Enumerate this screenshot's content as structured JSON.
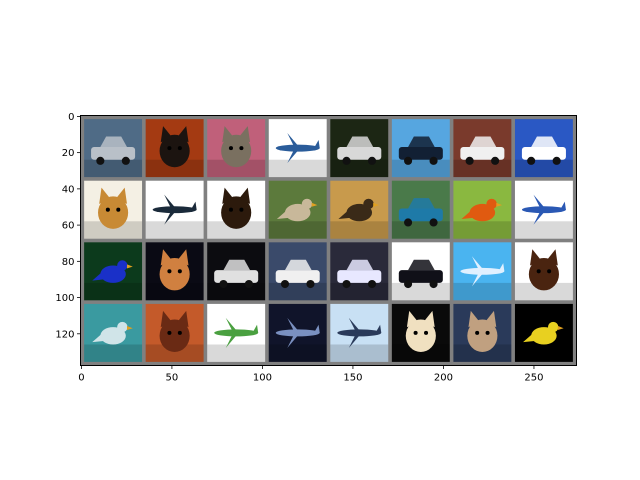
{
  "figure": {
    "type": "image-grid",
    "x_ticks": [
      "0",
      "50",
      "100",
      "150",
      "200",
      "250"
    ],
    "y_ticks": [
      "0",
      "20",
      "40",
      "60",
      "80",
      "100",
      "120"
    ],
    "grid_border_color": "#808080",
    "rows": [
      [
        {
          "subject": "car",
          "bg": "#4f6b86",
          "fg": "#b9c0c8"
        },
        {
          "subject": "cat",
          "bg": "#a43a12",
          "fg": "#1c1410"
        },
        {
          "subject": "cat",
          "bg": "#c0607a",
          "fg": "#7a7060"
        },
        {
          "subject": "airplane",
          "bg": "#ffffff",
          "fg": "#2a5c9a"
        },
        {
          "subject": "car",
          "bg": "#1c2614",
          "fg": "#d8d8d8"
        },
        {
          "subject": "car",
          "bg": "#56a6e0",
          "fg": "#122034"
        },
        {
          "subject": "car",
          "bg": "#7a3a2c",
          "fg": "#f0f0f0"
        },
        {
          "subject": "car",
          "bg": "#2a58c4",
          "fg": "#ffffff"
        }
      ],
      [
        {
          "subject": "cat",
          "bg": "#f4f0e4",
          "fg": "#c88a34"
        },
        {
          "subject": "airplane",
          "bg": "#ffffff",
          "fg": "#1a2a3a"
        },
        {
          "subject": "dog",
          "bg": "#ffffff",
          "fg": "#2c1a0c"
        },
        {
          "subject": "bird",
          "bg": "#5c7a3c",
          "fg": "#c8b89a"
        },
        {
          "subject": "bird",
          "bg": "#c89a4c",
          "fg": "#3a2a18"
        },
        {
          "subject": "car",
          "bg": "#4a7a4a",
          "fg": "#1e7aa8"
        },
        {
          "subject": "bird",
          "bg": "#8ab840",
          "fg": "#e05a10"
        },
        {
          "subject": "airplane",
          "bg": "#ffffff",
          "fg": "#2a58b4"
        }
      ],
      [
        {
          "subject": "bird",
          "bg": "#0c3a1c",
          "fg": "#1a30c8"
        },
        {
          "subject": "cat",
          "bg": "#0a0a14",
          "fg": "#d08040"
        },
        {
          "subject": "car",
          "bg": "#0c0c10",
          "fg": "#e0e0e0"
        },
        {
          "subject": "car",
          "bg": "#3a4a6a",
          "fg": "#f0f0f0"
        },
        {
          "subject": "car",
          "bg": "#2a2a3a",
          "fg": "#e8e8ff"
        },
        {
          "subject": "car",
          "bg": "#ffffff",
          "fg": "#101018"
        },
        {
          "subject": "airplane",
          "bg": "#4ab4f0",
          "fg": "#e0f0ff"
        },
        {
          "subject": "dog",
          "bg": "#ffffff",
          "fg": "#4a2410"
        }
      ],
      [
        {
          "subject": "bird",
          "bg": "#3a9aa0",
          "fg": "#d0e4e8"
        },
        {
          "subject": "cat",
          "bg": "#c45a2a",
          "fg": "#6a2a14"
        },
        {
          "subject": "airplane",
          "bg": "#ffffff",
          "fg": "#4aa040"
        },
        {
          "subject": "airplane",
          "bg": "#10142a",
          "fg": "#7a90c0"
        },
        {
          "subject": "airplane",
          "bg": "#c8e0f4",
          "fg": "#2a3a5a"
        },
        {
          "subject": "dog",
          "bg": "#0a0a0a",
          "fg": "#f0e0c0"
        },
        {
          "subject": "cat",
          "bg": "#2a3a5a",
          "fg": "#c0a080"
        },
        {
          "subject": "bird",
          "bg": "#000000",
          "fg": "#e8d020"
        }
      ]
    ]
  }
}
